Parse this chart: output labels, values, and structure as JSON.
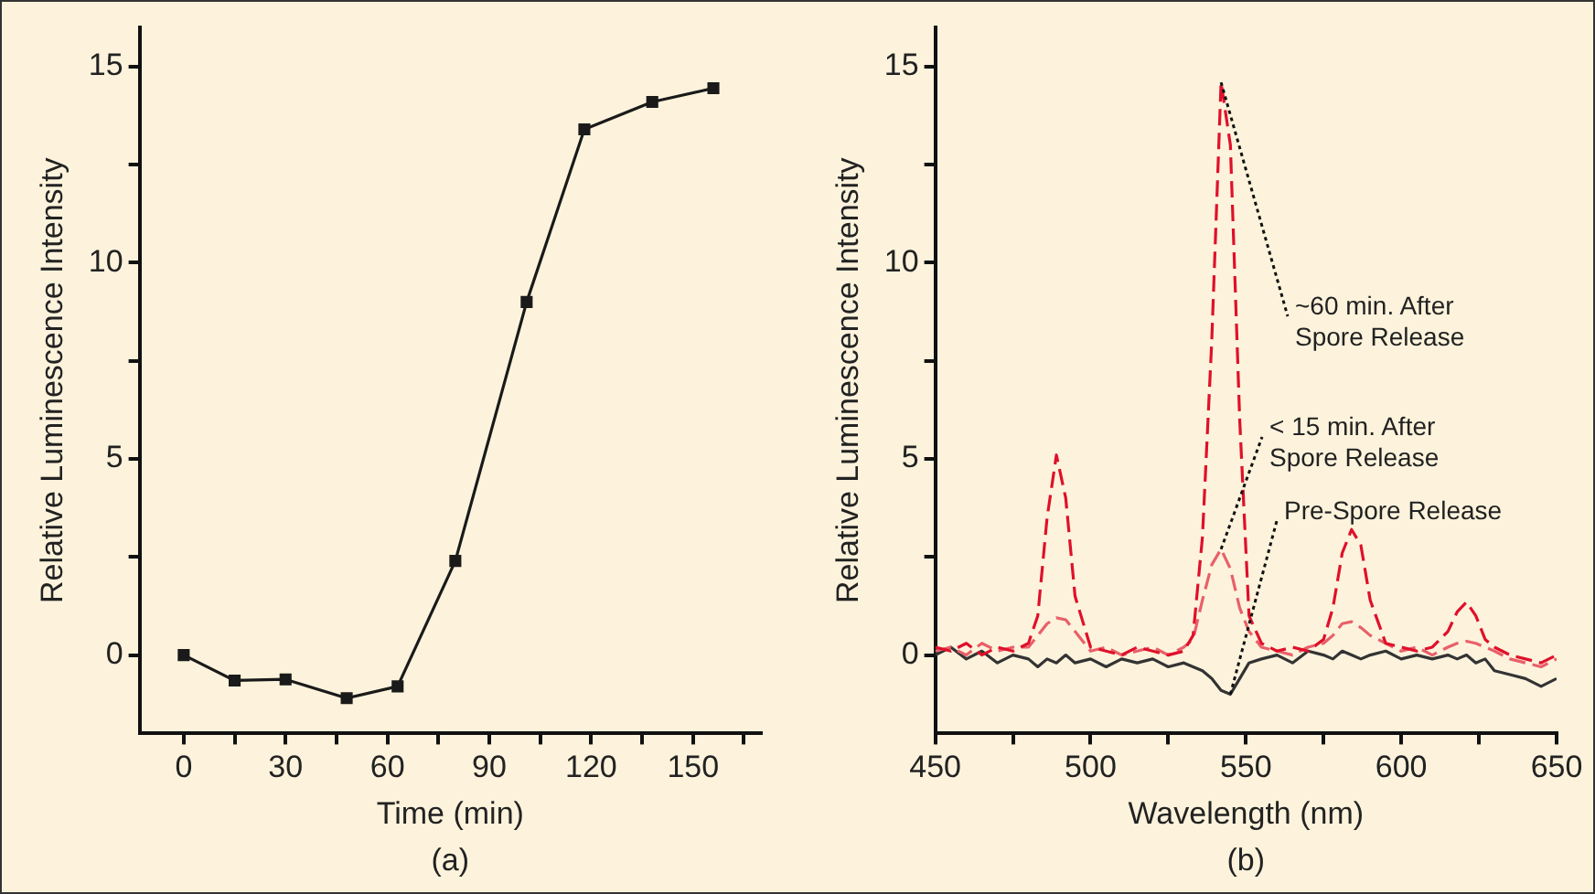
{
  "chart_data": [
    {
      "type": "line",
      "xlabel": "Time (min)",
      "ylabel": "Relative Luminescence Intensity",
      "annotations": [
        "(a)"
      ],
      "x": [
        0,
        15,
        30,
        48,
        63,
        80,
        101,
        118,
        138,
        156
      ],
      "series": [
        {
          "color": "#1a1a1a",
          "values": [
            0,
            -0.65,
            -0.62,
            -1.1,
            -0.8,
            2.4,
            9.0,
            13.4,
            14.1,
            14.45
          ]
        }
      ],
      "xlim": [
        -13,
        170
      ],
      "xticks": [
        0,
        {
          "value": 15,
          "label": null
        },
        30,
        {
          "value": 45,
          "label": null
        },
        60,
        {
          "value": 75,
          "label": null
        },
        90,
        {
          "value": 105,
          "label": null
        },
        120,
        {
          "value": 135,
          "label": null
        },
        150,
        {
          "value": 165,
          "label": null
        }
      ],
      "ylim": [
        -2,
        16
      ],
      "yticks": [
        0,
        {
          "value": 2.5,
          "label": null
        },
        5,
        {
          "value": 7.5,
          "label": null
        },
        10,
        {
          "value": 12.5,
          "label": null
        },
        15
      ],
      "grid": false,
      "legend": false,
      "marker": "square",
      "line_style": "solid"
    },
    {
      "type": "line",
      "xlabel": "Wavelength (nm)",
      "ylabel": "Relative Luminescence Intensity",
      "annotations": [
        "(b)"
      ],
      "x": [
        450,
        455,
        460,
        465,
        470,
        475,
        480,
        483,
        486,
        489,
        492,
        495,
        500,
        505,
        510,
        515,
        520,
        525,
        530,
        533,
        536,
        539,
        542,
        545,
        548,
        551,
        555,
        560,
        565,
        570,
        575,
        578,
        581,
        584,
        587,
        590,
        595,
        600,
        605,
        610,
        615,
        618,
        621,
        624,
        627,
        630,
        635,
        640,
        645,
        650
      ],
      "series": [
        {
          "name": "~60 min. After Spore Release",
          "color": "#e0102a",
          "line_style": "dashed",
          "values": [
            0.2,
            0.1,
            0.3,
            0.0,
            0.2,
            0.1,
            0.3,
            1.0,
            3.5,
            5.1,
            4.0,
            1.5,
            0.2,
            0.1,
            0.0,
            0.2,
            0.1,
            0.0,
            0.1,
            0.5,
            3.0,
            8.0,
            14.6,
            13.0,
            6.0,
            1.0,
            0.3,
            0.1,
            0.2,
            0.1,
            0.4,
            1.2,
            2.6,
            3.2,
            2.8,
            1.4,
            0.3,
            0.2,
            0.1,
            0.2,
            0.6,
            1.1,
            1.35,
            1.0,
            0.4,
            0.2,
            0.0,
            -0.1,
            -0.2,
            0.0
          ]
        },
        {
          "name": "< 15 min. After Spore Release",
          "color": "#e8606a",
          "line_style": "dashed",
          "values": [
            0.1,
            0.2,
            0.0,
            0.3,
            0.1,
            0.2,
            0.2,
            0.5,
            0.8,
            0.95,
            0.9,
            0.6,
            0.1,
            0.2,
            0.0,
            0.1,
            0.2,
            0.0,
            0.2,
            0.4,
            1.4,
            2.3,
            2.7,
            2.2,
            1.2,
            0.6,
            0.2,
            0.1,
            0.0,
            0.2,
            0.3,
            0.5,
            0.8,
            0.85,
            0.7,
            0.5,
            0.3,
            0.1,
            0.2,
            0.0,
            0.2,
            0.3,
            0.35,
            0.3,
            0.2,
            0.1,
            -0.1,
            -0.2,
            -0.3,
            -0.1
          ]
        },
        {
          "name": "Pre-Spore Release",
          "color": "#333333",
          "line_style": "solid",
          "values": [
            0.0,
            0.2,
            -0.1,
            0.1,
            -0.2,
            0.0,
            -0.1,
            -0.3,
            -0.1,
            -0.2,
            0.0,
            -0.2,
            -0.1,
            -0.3,
            -0.1,
            -0.2,
            -0.1,
            -0.3,
            -0.2,
            -0.3,
            -0.4,
            -0.6,
            -0.9,
            -1.0,
            -0.6,
            -0.2,
            -0.1,
            0.0,
            -0.2,
            0.1,
            0.0,
            -0.1,
            0.1,
            0.0,
            -0.1,
            0.0,
            0.1,
            -0.1,
            0.0,
            -0.1,
            0.0,
            -0.1,
            0.0,
            -0.2,
            -0.1,
            -0.4,
            -0.5,
            -0.6,
            -0.8,
            -0.6
          ]
        }
      ],
      "xlim": [
        450,
        650
      ],
      "xticks": [
        450,
        {
          "value": 475,
          "label": null
        },
        500,
        {
          "value": 525,
          "label": null
        },
        550,
        {
          "value": 575,
          "label": null
        },
        600,
        {
          "value": 625,
          "label": null
        },
        650
      ],
      "ylim": [
        -2,
        16
      ],
      "yticks": [
        0,
        {
          "value": 2.5,
          "label": null
        },
        5,
        {
          "value": 7.5,
          "label": null
        },
        10,
        {
          "value": 12.5,
          "label": null
        },
        15
      ],
      "grid": false,
      "legend": false,
      "marker": "none"
    }
  ]
}
